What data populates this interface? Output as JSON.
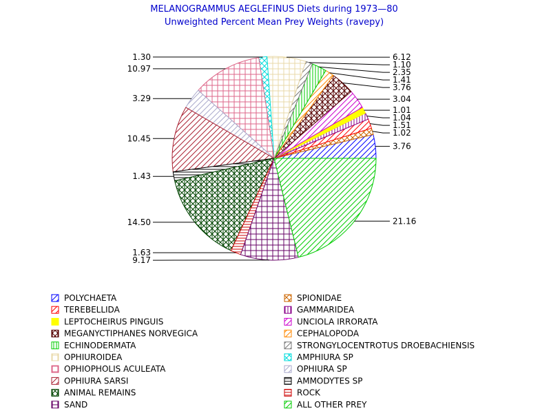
{
  "chart_data": {
    "type": "pie",
    "title": "MELANOGRAMMUS AEGLEFINUS Diets during 1973—80",
    "subtitle": "Unweighted Percent Mean Prey Weights (ravepy)",
    "slices": [
      {
        "name": "POLYCHAETA",
        "value": 3.76,
        "label": "3.76",
        "color": "#0000ff",
        "pattern": "diag"
      },
      {
        "name": "SPIONIDAE",
        "value": 1.02,
        "label": "1.02",
        "color": "#cc6600",
        "pattern": "cross"
      },
      {
        "name": "TEREBELLIDA",
        "value": 1.51,
        "label": "1.51",
        "color": "#ff0000",
        "pattern": "diag"
      },
      {
        "name": "GAMMARIDEA",
        "value": 1.04,
        "label": "1.04",
        "color": "#880088",
        "pattern": "vert"
      },
      {
        "name": "LEPTOCHEIRUS PINGUIS",
        "value": 1.01,
        "label": "1.01",
        "color": "#ffff00",
        "pattern": "solid"
      },
      {
        "name": "UNCIOLA IRRORATA",
        "value": 3.04,
        "label": "3.04",
        "color": "#cc00cc",
        "pattern": "diag"
      },
      {
        "name": "MEGANYCTIPHANES NORVEGICA",
        "value": 3.76,
        "label": "3.76",
        "color": "#550000",
        "pattern": "xcross"
      },
      {
        "name": "CEPHALOPODA",
        "value": 1.41,
        "label": "1.41",
        "color": "#ff8800",
        "pattern": "diag"
      },
      {
        "name": "ECHINODERMATA",
        "value": 2.35,
        "label": "2.35",
        "color": "#00cc00",
        "pattern": "vert"
      },
      {
        "name": "STRONGYLOCENTROTUS DROEBACHIENSIS",
        "value": 1.1,
        "label": "1.10",
        "color": "#777777",
        "pattern": "diag"
      },
      {
        "name": "OPHIUROIDEA",
        "value": 6.12,
        "label": "6.12",
        "color": "#e8d8a8",
        "pattern": "grid"
      },
      {
        "name": "AMPHIURA SP",
        "value": 1.3,
        "label": "1.30",
        "color": "#00dddd",
        "pattern": "cross"
      },
      {
        "name": "OPHIOPHOLIS ACULEATA",
        "value": 10.97,
        "label": "10.97",
        "color": "#dd6688",
        "pattern": "grid"
      },
      {
        "name": "OPHIURA SP",
        "value": 3.29,
        "label": "3.29",
        "color": "#aaaacc",
        "pattern": "diag"
      },
      {
        "name": "OPHIURA SARSI",
        "value": 10.45,
        "label": "10.45",
        "color": "#aa2233",
        "pattern": "diag"
      },
      {
        "name": "AMMODYTES SP",
        "value": 1.43,
        "label": "1.43",
        "color": "#000000",
        "pattern": "horiz"
      },
      {
        "name": "ANIMAL REMAINS",
        "value": 14.5,
        "label": "14.50",
        "color": "#004400",
        "pattern": "xcross"
      },
      {
        "name": "ROCK",
        "value": 1.63,
        "label": "1.63",
        "color": "#cc0000",
        "pattern": "horiz"
      },
      {
        "name": "SAND",
        "value": 9.17,
        "label": "9.17",
        "color": "#660066",
        "pattern": "grid"
      },
      {
        "name": "ALL OTHER PREY",
        "value": 21.16,
        "label": "21.16",
        "color": "#00cc00",
        "pattern": "diag"
      }
    ],
    "start_angle_deg": 0,
    "direction": "counterclockwise",
    "legend_position": "bottom, two columns"
  }
}
